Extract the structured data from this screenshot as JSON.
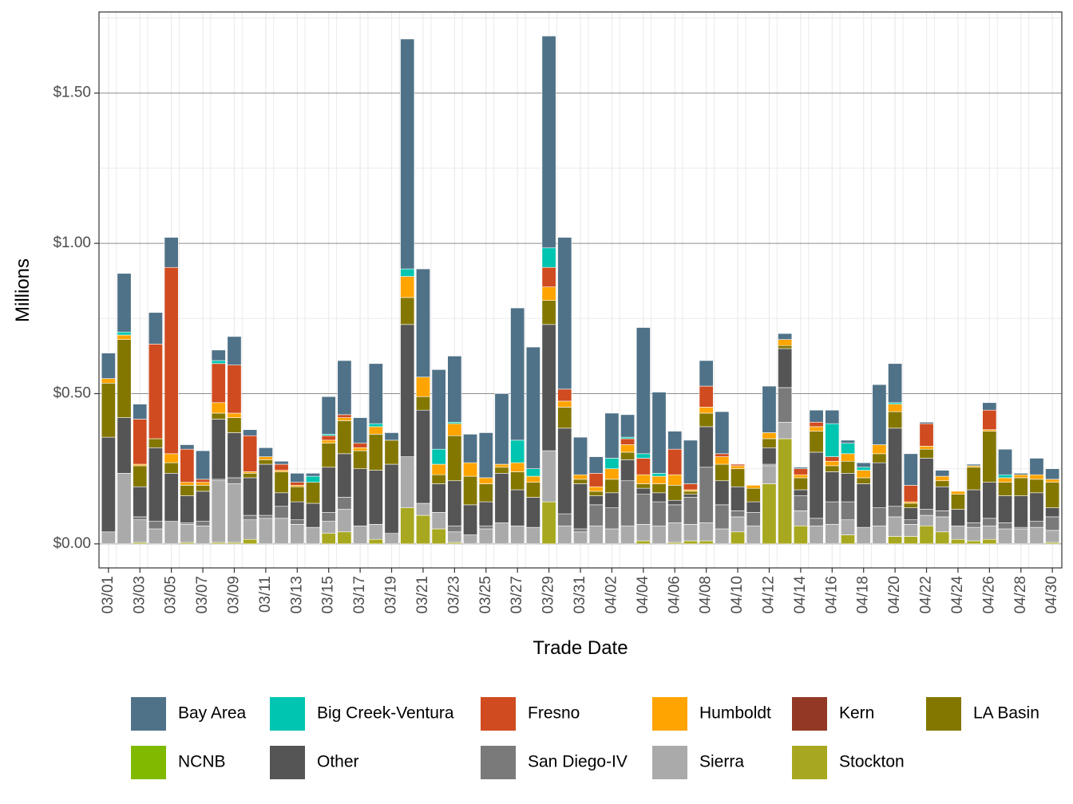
{
  "chart_data": {
    "type": "bar",
    "stacked": true,
    "title": "",
    "xlabel": "Trade Date",
    "ylabel": "Millions",
    "ylim": [
      -0.08,
      1.77
    ],
    "yticks": [
      0.0,
      0.5,
      1.0,
      1.5
    ],
    "ytick_labels": [
      "$0.00",
      "$0.50",
      "$1.00",
      "$1.50"
    ],
    "legend_position": "bottom",
    "categories": [
      "03/01",
      "03/02",
      "03/03",
      "03/04",
      "03/05",
      "03/06",
      "03/07",
      "03/08",
      "03/09",
      "03/10",
      "03/11",
      "03/12",
      "03/13",
      "03/14",
      "03/15",
      "03/16",
      "03/17",
      "03/18",
      "03/19",
      "03/20",
      "03/21",
      "03/22",
      "03/23",
      "03/24",
      "03/25",
      "03/26",
      "03/27",
      "03/28",
      "03/29",
      "03/30",
      "03/31",
      "04/01",
      "04/02",
      "04/03",
      "04/04",
      "04/05",
      "04/06",
      "04/07",
      "04/08",
      "04/09",
      "04/10",
      "04/11",
      "04/12",
      "04/13",
      "04/14",
      "04/15",
      "04/16",
      "04/17",
      "04/18",
      "04/19",
      "04/20",
      "04/21",
      "04/22",
      "04/23",
      "04/24",
      "04/25",
      "04/26",
      "04/27",
      "04/28",
      "04/29",
      "04/30"
    ],
    "xtick_labels": [
      "03/01",
      "03/03",
      "03/05",
      "03/07",
      "03/09",
      "03/11",
      "03/13",
      "03/15",
      "03/17",
      "03/19",
      "03/21",
      "03/23",
      "03/25",
      "03/27",
      "03/29",
      "03/31",
      "04/02",
      "04/04",
      "04/06",
      "04/08",
      "04/10",
      "04/12",
      "04/14",
      "04/16",
      "04/18",
      "04/20",
      "04/22",
      "04/24",
      "04/26",
      "04/28",
      "04/30"
    ],
    "series": [
      {
        "name": "Stockton",
        "color": "#a8a820",
        "values": [
          0,
          0,
          0.005,
          0,
          0,
          0.005,
          0,
          0.005,
          0.005,
          0.015,
          0,
          0,
          0,
          0,
          0.035,
          0.04,
          0,
          0.015,
          0,
          0.12,
          0.095,
          0.05,
          0.005,
          0,
          0,
          0,
          0,
          0,
          0.14,
          0,
          0,
          0,
          0,
          0,
          0.01,
          0,
          0.005,
          0.01,
          0.01,
          0,
          0.04,
          0,
          0.2,
          0.35,
          0.06,
          0,
          0,
          0.03,
          0,
          0,
          0.025,
          0.025,
          0.06,
          0.04,
          0.015,
          0.01,
          0.015,
          0,
          0,
          0,
          0.005
        ]
      },
      {
        "name": "NCNB",
        "color": "#7fba00",
        "values": [
          0,
          0,
          0,
          0,
          0,
          0,
          0,
          0,
          0,
          0,
          0,
          0,
          0,
          0,
          0,
          0,
          0,
          0,
          0,
          0,
          0,
          0,
          0,
          0,
          0,
          0,
          0,
          0,
          0,
          0,
          0,
          0,
          0,
          0,
          0,
          0,
          0,
          0,
          0,
          0,
          0,
          0,
          0,
          0,
          0,
          0,
          0,
          0,
          0,
          0,
          0,
          0,
          0,
          0,
          0,
          0,
          0,
          0,
          0,
          0,
          0
        ]
      },
      {
        "name": "Sierra",
        "color": "#aaaaaa",
        "values": [
          0.04,
          0.235,
          0.075,
          0.05,
          0.075,
          0.06,
          0.06,
          0.205,
          0.195,
          0.065,
          0.085,
          0.085,
          0.065,
          0.055,
          0.04,
          0.075,
          0.06,
          0.05,
          0.035,
          0.17,
          0.04,
          0.055,
          0.035,
          0.03,
          0.05,
          0.07,
          0.06,
          0.055,
          0.17,
          0.06,
          0.04,
          0.06,
          0.05,
          0.06,
          0.055,
          0.06,
          0.065,
          0.055,
          0.06,
          0.05,
          0.05,
          0.06,
          0.06,
          0.055,
          0.05,
          0.06,
          0.065,
          0.05,
          0.055,
          0.06,
          0.065,
          0.04,
          0.035,
          0.05,
          0.045,
          0.045,
          0.045,
          0.05,
          0.05,
          0.055,
          0.04
        ]
      },
      {
        "name": "San Diego-IV",
        "color": "#7a7a7a",
        "values": [
          0,
          0,
          0.01,
          0.025,
          0,
          0.005,
          0.015,
          0.005,
          0.02,
          0.015,
          0.01,
          0.04,
          0.015,
          0,
          0.03,
          0.04,
          0,
          0,
          0,
          0,
          0,
          0,
          0.02,
          0,
          0.01,
          0,
          0,
          0,
          0,
          0.04,
          0.01,
          0.07,
          0.07,
          0.15,
          0.1,
          0.08,
          0.06,
          0.09,
          0.185,
          0.08,
          0.02,
          0.045,
          0.005,
          0.115,
          0.05,
          0.025,
          0.075,
          0.06,
          0,
          0.06,
          0.035,
          0.015,
          0.02,
          0.02,
          0,
          0.015,
          0.025,
          0.02,
          0.005,
          0.02,
          0.045
        ]
      },
      {
        "name": "Other",
        "color": "#555555",
        "values": [
          0.315,
          0.185,
          0.1,
          0.245,
          0.16,
          0.09,
          0.1,
          0.2,
          0.15,
          0.125,
          0.17,
          0.045,
          0.06,
          0.08,
          0.15,
          0.145,
          0.19,
          0.18,
          0.23,
          0.44,
          0.31,
          0.095,
          0.15,
          0.1,
          0.08,
          0.165,
          0.12,
          0.1,
          0.42,
          0.285,
          0.15,
          0.03,
          0.05,
          0.07,
          0.02,
          0.03,
          0.015,
          0.01,
          0.135,
          0.08,
          0.08,
          0.035,
          0.055,
          0.13,
          0.02,
          0.22,
          0.1,
          0.095,
          0.145,
          0.15,
          0.26,
          0.04,
          0.17,
          0.08,
          0.055,
          0.11,
          0.12,
          0.09,
          0.105,
          0.095,
          0.03
        ]
      },
      {
        "name": "Kern",
        "color": "#933824",
        "values": [
          0,
          0,
          0,
          0,
          0,
          0,
          0,
          0,
          0,
          0,
          0,
          0,
          0,
          0,
          0,
          0,
          0,
          0,
          0,
          0,
          0,
          0,
          0,
          0,
          0,
          0,
          0,
          0,
          0,
          0,
          0,
          0,
          0,
          0,
          0,
          0,
          0,
          0,
          0,
          0,
          0,
          0,
          0,
          0,
          0,
          0,
          0,
          0,
          0,
          0,
          0,
          0,
          0,
          0,
          0,
          0,
          0,
          0,
          0,
          0,
          0
        ]
      },
      {
        "name": "LA Basin",
        "color": "#847700",
        "values": [
          0.18,
          0.26,
          0.07,
          0.03,
          0.035,
          0.035,
          0.02,
          0.02,
          0.05,
          0.015,
          0.015,
          0.07,
          0.05,
          0.07,
          0.08,
          0.11,
          0.06,
          0.12,
          0.08,
          0.09,
          0.045,
          0.03,
          0.15,
          0.095,
          0.06,
          0.02,
          0.06,
          0.05,
          0.08,
          0.07,
          0.015,
          0.015,
          0.045,
          0.025,
          0.015,
          0.03,
          0.05,
          0.01,
          0.045,
          0.055,
          0.06,
          0.045,
          0.03,
          0.01,
          0.04,
          0.07,
          0.02,
          0.04,
          0.02,
          0.03,
          0.055,
          0.015,
          0.03,
          0.02,
          0.05,
          0.075,
          0.17,
          0.045,
          0.06,
          0.045,
          0.085
        ]
      },
      {
        "name": "Humboldt",
        "color": "#ffa400",
        "values": [
          0.015,
          0.015,
          0.005,
          0,
          0.03,
          0.01,
          0.01,
          0.035,
          0.015,
          0.005,
          0.01,
          0.005,
          0.005,
          0,
          0.01,
          0.01,
          0.01,
          0.025,
          0,
          0.07,
          0.065,
          0.035,
          0.04,
          0.045,
          0.02,
          0.01,
          0.03,
          0.02,
          0.045,
          0.02,
          0.015,
          0.015,
          0.035,
          0.025,
          0.03,
          0.025,
          0.035,
          0.005,
          0.02,
          0.025,
          0.01,
          0.01,
          0.02,
          0.02,
          0.01,
          0.015,
          0.015,
          0.025,
          0.025,
          0.03,
          0.025,
          0.005,
          0.01,
          0.015,
          0.01,
          0.005,
          0.005,
          0.015,
          0.01,
          0.015,
          0.01
        ]
      },
      {
        "name": "Fresno",
        "color": "#d04b20",
        "values": [
          0,
          0,
          0.15,
          0.315,
          0.62,
          0.11,
          0.01,
          0.13,
          0.16,
          0.12,
          0,
          0.02,
          0.01,
          0,
          0.015,
          0.01,
          0.015,
          0,
          0,
          0,
          0,
          0,
          0,
          0,
          0,
          0,
          0,
          0,
          0.065,
          0.04,
          0,
          0.045,
          0,
          0.02,
          0.055,
          0,
          0.085,
          0.02,
          0.07,
          0.01,
          0.005,
          0,
          0,
          0,
          0.02,
          0.015,
          0.015,
          0,
          0,
          0,
          0,
          0.055,
          0.075,
          0,
          0,
          0,
          0.065,
          0,
          0,
          0,
          0
        ]
      },
      {
        "name": "Big Creek-Ventura",
        "color": "#00c5b0",
        "values": [
          0,
          0.01,
          0,
          0,
          0,
          0,
          0,
          0.01,
          0,
          0,
          0,
          0,
          0,
          0.02,
          0.005,
          0,
          0,
          0.01,
          0,
          0.025,
          0,
          0.05,
          0.005,
          0,
          0,
          0,
          0.075,
          0.025,
          0.065,
          0,
          0,
          0,
          0.035,
          0.005,
          0.015,
          0.01,
          0,
          0,
          0,
          0,
          0,
          0,
          0,
          0,
          0,
          0,
          0.11,
          0.035,
          0.01,
          0,
          0.005,
          0,
          0,
          0,
          0,
          0,
          0,
          0.01,
          0,
          0,
          0
        ]
      },
      {
        "name": "Bay Area",
        "color": "#4f7288",
        "values": [
          0.085,
          0.195,
          0.05,
          0.105,
          0.1,
          0.015,
          0.095,
          0.035,
          0.095,
          0.02,
          0.03,
          0.01,
          0.03,
          0.01,
          0.125,
          0.18,
          0.085,
          0.2,
          0.025,
          0.765,
          0.36,
          0.265,
          0.22,
          0.095,
          0.15,
          0.235,
          0.44,
          0.405,
          0.705,
          0.505,
          0.125,
          0.055,
          0.15,
          0.075,
          0.42,
          0.27,
          0.06,
          0.145,
          0.085,
          0.14,
          0,
          0,
          0.155,
          0.02,
          0.005,
          0.04,
          0.045,
          0.01,
          0.015,
          0.2,
          0.13,
          0.105,
          0.005,
          0.02,
          0,
          0.005,
          0.025,
          0.085,
          0.005,
          0.055,
          0.035
        ]
      }
    ]
  }
}
